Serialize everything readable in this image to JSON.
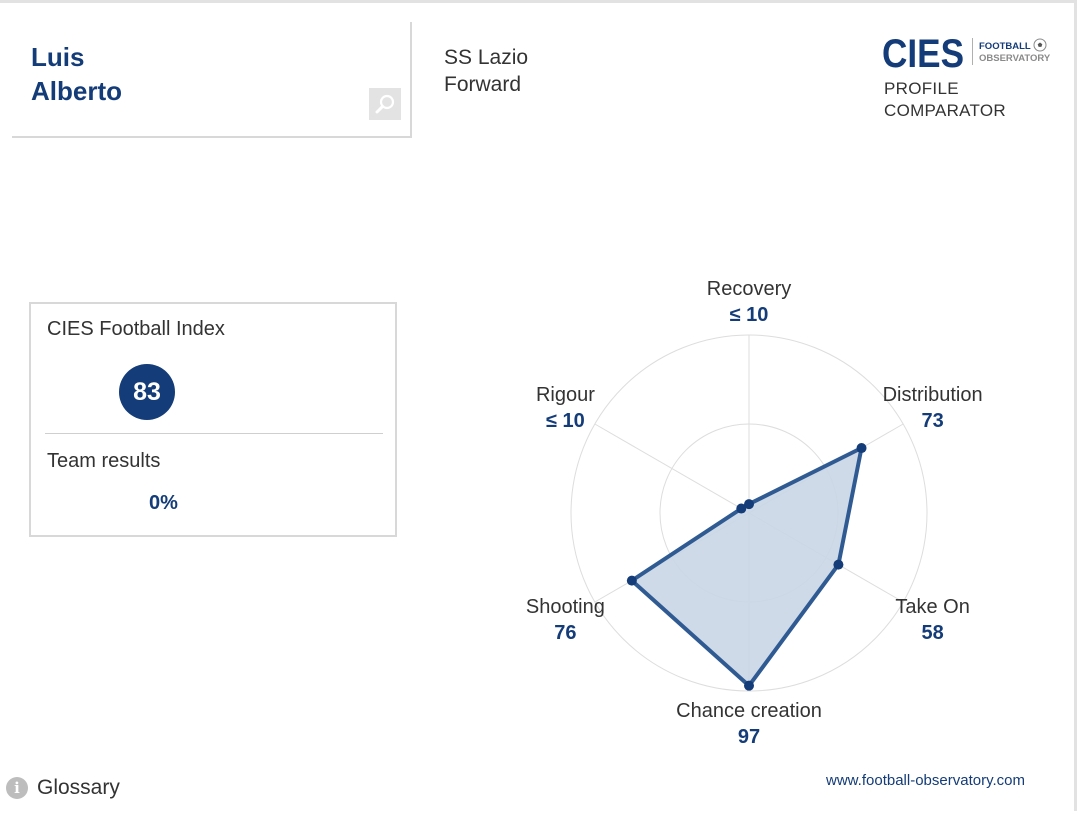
{
  "player": {
    "first_name": "Luis",
    "last_name": "Alberto",
    "club": "SS Lazio",
    "position": "Forward"
  },
  "logo": {
    "brand": "CIES",
    "line1": "FOOTBALL",
    "line2": "OBSERVATORY",
    "profile_line1": "PROFILE",
    "profile_line2": "COMPARATOR"
  },
  "index": {
    "label": "CIES Football Index",
    "value": "83",
    "team_label": "Team results",
    "team_value": "0%"
  },
  "icons": {
    "search": "search-icon",
    "info": "info-icon",
    "ball": "soccer-ball-icon"
  },
  "colors": {
    "primary": "#143c78",
    "radar_fill": "#c9d6e6",
    "radar_stroke": "#2f5a92",
    "grid": "#dddddd"
  },
  "chart_data": {
    "type": "radar",
    "max": 100,
    "rings": [
      50,
      100
    ],
    "axes": [
      {
        "name": "Recovery",
        "display": "≤ 10",
        "value": 5
      },
      {
        "name": "Distribution",
        "display": "73",
        "value": 73
      },
      {
        "name": "Take On",
        "display": "58",
        "value": 58
      },
      {
        "name": "Chance creation",
        "display": "97",
        "value": 97
      },
      {
        "name": "Shooting",
        "display": "76",
        "value": 76
      },
      {
        "name": "Rigour",
        "display": "≤ 10",
        "value": 5
      }
    ]
  },
  "footer": {
    "glossary": "Glossary",
    "url": "www.football-observatory.com"
  }
}
